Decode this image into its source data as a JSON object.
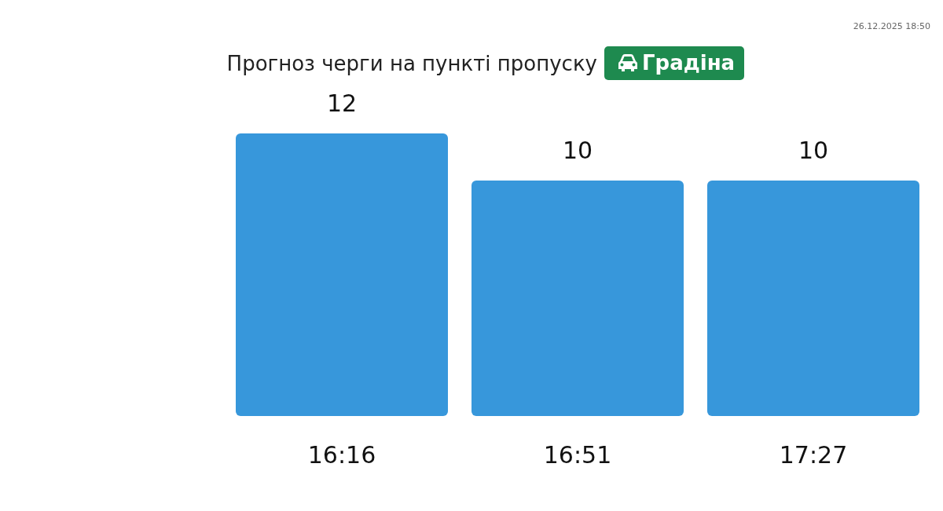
{
  "chart_data": {
    "type": "bar",
    "title": "Прогноз черги на пункті пропуску",
    "subtitle": "Градіна",
    "categories": [
      "16:16",
      "16:51",
      "17:27"
    ],
    "values": [
      12,
      10,
      10
    ],
    "color": "#3797db",
    "data_labels": true,
    "annotations": [
      "26.12.2025 18:50"
    ]
  }
}
